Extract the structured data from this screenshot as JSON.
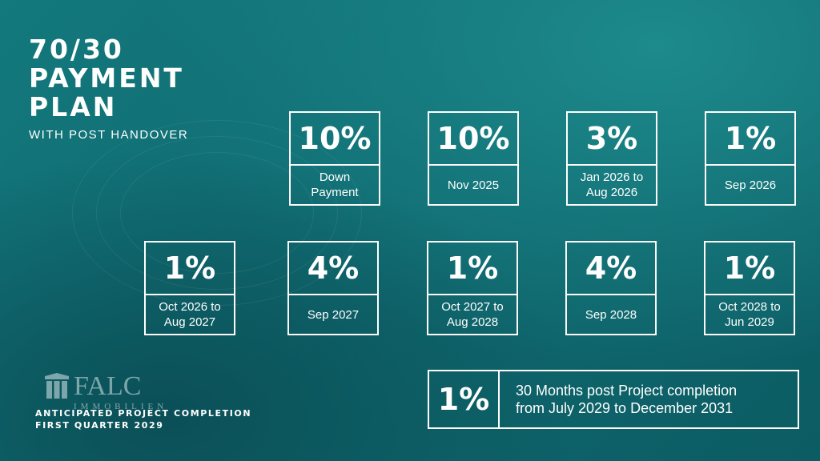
{
  "title": {
    "line1": "70/30",
    "line2": "PAYMENT",
    "line3": "PLAN"
  },
  "subtitle": "WITH POST HANDOVER",
  "row1": [
    {
      "percent": "10%",
      "line1": "Down",
      "line2": "Payment"
    },
    {
      "percent": "10%",
      "line1": "Nov 2025",
      "line2": ""
    },
    {
      "percent": "3%",
      "line1": "Jan 2026 to",
      "line2": "Aug 2026"
    },
    {
      "percent": "1%",
      "line1": "Sep 2026",
      "line2": ""
    }
  ],
  "row2": [
    {
      "percent": "1%",
      "line1": "Oct 2026 to",
      "line2": "Aug 2027"
    },
    {
      "percent": "4%",
      "line1": "Sep 2027",
      "line2": ""
    },
    {
      "percent": "1%",
      "line1": "Oct 2027 to",
      "line2": "Aug 2028"
    },
    {
      "percent": "4%",
      "line1": "Sep 2028",
      "line2": ""
    },
    {
      "percent": "1%",
      "line1": "Oct 2028 to",
      "line2": "Jun 2029"
    }
  ],
  "post": {
    "percent": "1%",
    "line1": "30 Months post Project completion",
    "line2": "from July 2029 to December 2031"
  },
  "logo": {
    "name": "FALC",
    "sub": "IMMOBILIEN"
  },
  "footer": {
    "line1": "ANTICIPATED PROJECT COMPLETION",
    "line2": "FIRST QUARTER 2029"
  },
  "colors": {
    "background": "#0f6a70",
    "foreground": "#ffffff"
  }
}
